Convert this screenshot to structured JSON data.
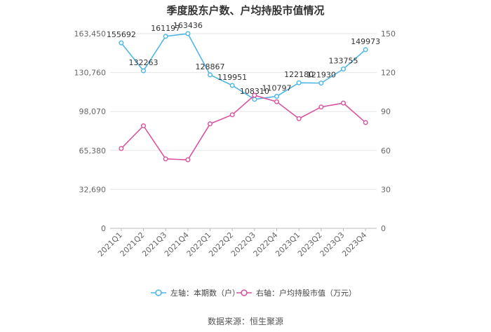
{
  "title": "季度股东户数、户均持股市值情况",
  "source": "数据来源：恒生聚源",
  "chart_data": {
    "type": "line",
    "categories": [
      "2021Q1",
      "2021Q2",
      "2021Q3",
      "2021Q4",
      "2022Q1",
      "2022Q2",
      "2022Q3",
      "2022Q4",
      "2023Q1",
      "2023Q2",
      "2023Q3",
      "2023Q4"
    ],
    "left_axis": {
      "ticks": [
        0,
        32690,
        65380,
        98070,
        130760,
        163450
      ],
      "tick_labels": [
        "0",
        "32,690",
        "65,380",
        "98,070",
        "130,760",
        "163,450"
      ],
      "ylim": [
        0,
        163450
      ]
    },
    "right_axis": {
      "ticks": [
        0,
        30,
        60,
        90,
        120,
        150
      ],
      "tick_labels": [
        "0",
        "30",
        "60",
        "90",
        "120",
        "150"
      ],
      "ylim": [
        0,
        150
      ]
    },
    "series": [
      {
        "name": "左轴：本期数（户）",
        "axis": "left",
        "color": "#4DB6E8",
        "values": [
          155692,
          132263,
          161197,
          163436,
          128867,
          119951,
          108310,
          110797,
          122180,
          121930,
          133755,
          149973
        ],
        "labels": [
          "155692",
          "132263",
          "161197",
          "163436",
          "128867",
          "119951",
          "108310",
          "110797",
          "122180",
          "121930",
          "133755",
          "149973"
        ]
      },
      {
        "name": "右轴：户均持股市值（万元）",
        "axis": "right",
        "color": "#D9539E",
        "values": [
          61.5,
          79.0,
          53.5,
          52.8,
          80.5,
          87.5,
          102.5,
          97.5,
          84.5,
          93.5,
          96.5,
          81.5
        ]
      }
    ],
    "legend_position": "bottom",
    "grid": true
  }
}
